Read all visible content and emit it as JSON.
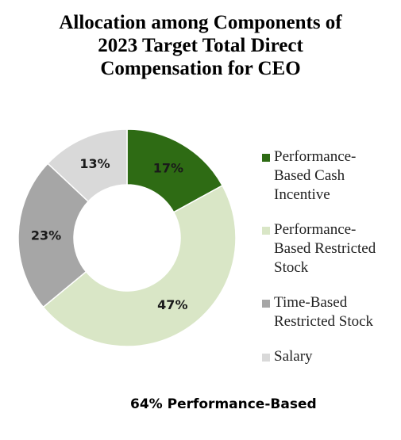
{
  "chart_data": {
    "type": "pie",
    "donut": true,
    "title_lines": [
      "Allocation among Components of",
      "2023 Target Total Direct",
      "Compensation for CEO"
    ],
    "categories": [
      "Performance-Based Cash Incentive",
      "Performance-Based Restricted Stock",
      "Time-Based Restricted Stock",
      "Salary"
    ],
    "legend_labels": [
      "Performance-\nBased Cash\nIncentive",
      "Performance-\nBased Restricted\nStock",
      "Time-Based\nRestricted Stock",
      "Salary"
    ],
    "values": [
      17,
      47,
      23,
      13
    ],
    "value_labels": [
      "17%",
      "47%",
      "23%",
      "13%"
    ],
    "colors": [
      "#2e6b14",
      "#d9e6c6",
      "#a6a6a6",
      "#d9d9d9"
    ],
    "legend_position": "right",
    "annotation": "64% Performance-Based"
  }
}
